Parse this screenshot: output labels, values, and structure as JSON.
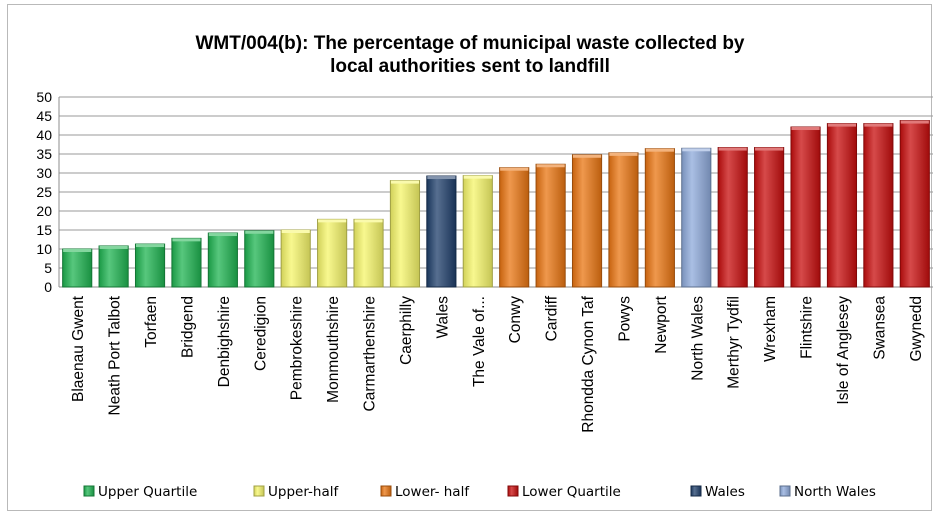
{
  "chart_data": {
    "type": "bar",
    "title_lines": [
      "WMT/004(b):  The percentage of municipal waste collected by",
      "local authorities sent to landfill"
    ],
    "ylim": [
      0,
      50
    ],
    "yticks": [
      0,
      5,
      10,
      15,
      20,
      25,
      30,
      35,
      40,
      45,
      50
    ],
    "grid": true,
    "legend_position": "bottom",
    "categories": [
      "Blaenau Gwent",
      "Neath Port Talbot",
      "Torfaen",
      "Bridgend",
      "Denbighshire",
      "Ceredigion",
      "Pembrokeshire",
      "Monmouthshire",
      "Carmarthenshire",
      "Caerphilly",
      "Wales",
      "The Vale of...",
      "Conwy",
      "Cardiff",
      "Rhondda Cynon Taf",
      "Powys",
      "Newport",
      "North Wales",
      "Merthyr Tydfil",
      "Wrexham",
      "Flintshire",
      "Isle of Anglesey",
      "Swansea",
      "Gwynedd"
    ],
    "values": [
      10,
      10.8,
      11.3,
      12.8,
      14.2,
      14.8,
      15,
      17.8,
      17.8,
      28,
      29.2,
      29.3,
      31.4,
      32.3,
      34.8,
      35.3,
      36.4,
      36.5,
      36.7,
      36.7,
      42.1,
      43,
      43,
      43.8
    ],
    "groups": [
      "upper_quartile",
      "upper_quartile",
      "upper_quartile",
      "upper_quartile",
      "upper_quartile",
      "upper_quartile",
      "upper_half",
      "upper_half",
      "upper_half",
      "upper_half",
      "wales",
      "upper_half",
      "lower_half",
      "lower_half",
      "lower_half",
      "lower_half",
      "lower_half",
      "north_wales",
      "lower_quartile",
      "lower_quartile",
      "lower_quartile",
      "lower_quartile",
      "lower_quartile",
      "lower_quartile"
    ],
    "legend": [
      {
        "key": "upper_quartile",
        "label": "Upper Quartile",
        "color": "#1fb451"
      },
      {
        "key": "upper_half",
        "label": "Upper-half",
        "color": "#f6f66a"
      },
      {
        "key": "lower_half",
        "label": "Lower- half",
        "color": "#ea7512"
      },
      {
        "key": "lower_quartile",
        "label": "Lower Quartile",
        "color": "#c80e0e"
      },
      {
        "key": "wales",
        "label": "Wales",
        "color": "#1f3f6b"
      },
      {
        "key": "north_wales",
        "label": "North Wales",
        "color": "#8eaadb"
      }
    ]
  }
}
